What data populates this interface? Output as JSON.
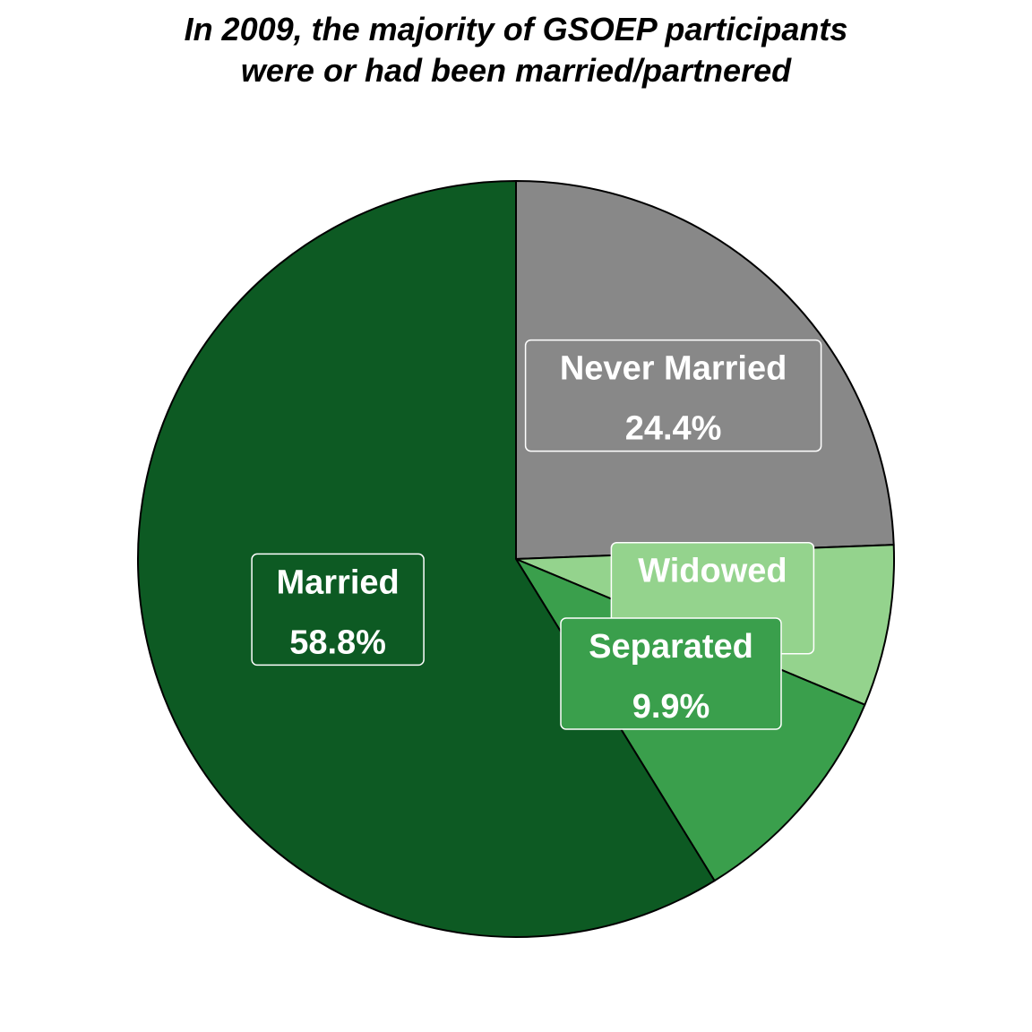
{
  "chart_data": {
    "type": "pie",
    "title": "In 2009, the majority of GSOEP participants were or had been married/partnered",
    "title_lines": [
      "In 2009, the majority of GSOEP participants",
      "were or had been married/partnered"
    ],
    "start_angle_deg": 0,
    "direction": "clockwise",
    "slices": [
      {
        "label": "Never Married",
        "value": 24.4,
        "display": "24.4%",
        "color": "#888888"
      },
      {
        "label": "Widowed",
        "value": 6.9,
        "display": "6.9%",
        "color": "#94d38d"
      },
      {
        "label": "Separated",
        "value": 9.9,
        "display": "9.9%",
        "color": "#3a9f4c"
      },
      {
        "label": "Married",
        "value": 58.8,
        "display": "58.8%",
        "color": "#0d5a23"
      }
    ],
    "legend": "none"
  }
}
